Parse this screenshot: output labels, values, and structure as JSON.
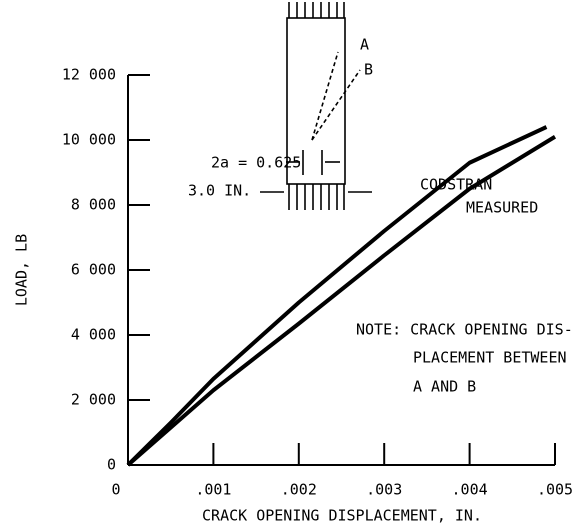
{
  "chart_data": {
    "type": "line",
    "xlabel": "CRACK OPENING DISPLACEMENT, IN.",
    "ylabel": "LOAD, LB",
    "xlim": [
      0,
      0.005
    ],
    "ylim": [
      0,
      12000
    ],
    "xticks": [
      0,
      {
        "value": 0.001,
        "label": ".001"
      },
      {
        "value": 0.002,
        "label": ".002"
      },
      {
        "value": 0.003,
        "label": ".003"
      },
      {
        "value": 0.004,
        "label": ".004"
      },
      {
        "value": 0.005,
        "label": ".005"
      }
    ],
    "yticks": [
      0,
      {
        "value": 2000,
        "label": "2 000"
      },
      {
        "value": 4000,
        "label": "4 000"
      },
      {
        "value": 6000,
        "label": "6 000"
      },
      {
        "value": 8000,
        "label": "8 000"
      },
      {
        "value": 10000,
        "label": "10 000"
      },
      {
        "value": 12000,
        "label": "12 000"
      }
    ],
    "series": [
      {
        "name": "CODSTRAN",
        "color": "#000000",
        "x": [
          0,
          0.0005,
          0.001,
          0.002,
          0.003,
          0.004,
          0.0049
        ],
        "values": [
          0,
          1300,
          2650,
          5000,
          7200,
          9300,
          10400
        ]
      },
      {
        "name": "MEASURED",
        "color": "#000000",
        "x": [
          0,
          0.0005,
          0.001,
          0.002,
          0.003,
          0.004,
          0.005
        ],
        "values": [
          0,
          1150,
          2300,
          4350,
          6450,
          8500,
          10100
        ]
      }
    ],
    "note": [
      "NOTE: CRACK OPENING DIS-",
      "PLACEMENT BETWEEN",
      "A AND B"
    ],
    "inset": {
      "point_a": "A",
      "point_b": "B",
      "crack": "2a = 0.625",
      "width": "3.0 IN."
    }
  }
}
